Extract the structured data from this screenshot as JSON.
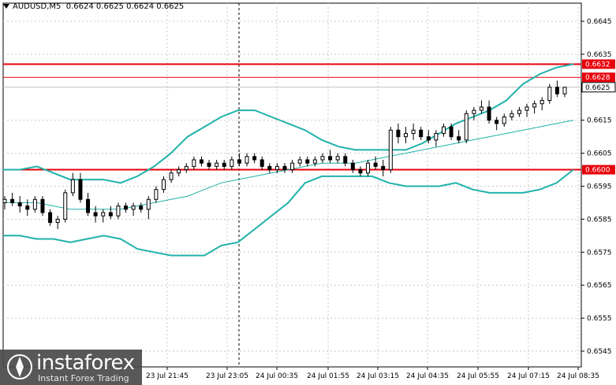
{
  "header": {
    "symbol": "AUDUSD,M5",
    "quote": "0.6624 0.6625 0.6624 0.6625"
  },
  "logo": {
    "brand": "instaforex",
    "tagline": "Instant Forex Trading"
  },
  "colors": {
    "candle": "#000000",
    "band": "#20b2aa",
    "level_line": "#e8000b",
    "level_bg": "#e8000b",
    "grid": "#c8c8c8",
    "vline": "#000000"
  },
  "chart_data": {
    "type": "candlestick",
    "symbol": "AUDUSD",
    "timeframe": "M5",
    "ylim": [
      0.654,
      0.665
    ],
    "y_ticks": [
      "0.6645",
      "0.6635",
      "0.6615",
      "0.6605",
      "0.6595",
      "0.6585",
      "0.6575",
      "0.6565",
      "0.6555",
      "0.6545"
    ],
    "x_ticks": [
      "23 Jul 21:45",
      "23 Jul 23:05",
      "24 Jul 00:35",
      "24 Jul 01:55",
      "24 Jul 03:15",
      "24 Jul 04:35",
      "24 Jul 05:55",
      "24 Jul 07:15",
      "24 Jul 08:35"
    ],
    "current_price": "0.6625",
    "levels": [
      {
        "label": "0.6632",
        "value": 0.6632
      },
      {
        "label": "0.6628",
        "value": 0.6628
      },
      {
        "label": "0.6600",
        "value": 0.66
      }
    ],
    "bollinger": {
      "upper": [
        0.66,
        0.66,
        0.6601,
        0.6599,
        0.6597,
        0.6597,
        0.6597,
        0.6596,
        0.6598,
        0.6601,
        0.6605,
        0.661,
        0.6613,
        0.6616,
        0.6618,
        0.6618,
        0.6616,
        0.6614,
        0.6612,
        0.6609,
        0.6607,
        0.6606,
        0.6606,
        0.6606,
        0.6606,
        0.6608,
        0.6611,
        0.6614,
        0.6616,
        0.6618,
        0.6621,
        0.6626,
        0.6629,
        0.6631,
        0.6632
      ],
      "middle": [
        0.659,
        0.659,
        0.659,
        0.6589,
        0.6588,
        0.6588,
        0.6588,
        0.6588,
        0.6589,
        0.659,
        0.6591,
        0.6592,
        0.6594,
        0.6596,
        0.6597,
        0.6598,
        0.6599,
        0.66,
        0.6601,
        0.6602,
        0.6602,
        0.6602,
        0.6603,
        0.6604,
        0.6605,
        0.6606,
        0.6607,
        0.6608,
        0.6609,
        0.661,
        0.6611,
        0.6612,
        0.6613,
        0.6614,
        0.6615
      ],
      "lower": [
        0.658,
        0.658,
        0.6579,
        0.6579,
        0.6578,
        0.6579,
        0.658,
        0.6579,
        0.6576,
        0.6575,
        0.6574,
        0.6574,
        0.6574,
        0.6577,
        0.6578,
        0.6582,
        0.6586,
        0.659,
        0.6596,
        0.6598,
        0.6598,
        0.6598,
        0.6598,
        0.6596,
        0.6595,
        0.6595,
        0.6595,
        0.6596,
        0.6594,
        0.6593,
        0.6593,
        0.6593,
        0.6594,
        0.6596,
        0.66
      ]
    },
    "candles": [
      [
        0.659,
        0.6592,
        0.6588,
        0.6591
      ],
      [
        0.6591,
        0.6593,
        0.6589,
        0.659
      ],
      [
        0.659,
        0.6592,
        0.6587,
        0.6589
      ],
      [
        0.6589,
        0.6591,
        0.6586,
        0.6588
      ],
      [
        0.6588,
        0.6592,
        0.6587,
        0.6591
      ],
      [
        0.6591,
        0.6592,
        0.6586,
        0.6587
      ],
      [
        0.6587,
        0.6588,
        0.6583,
        0.6584
      ],
      [
        0.6584,
        0.6586,
        0.6582,
        0.6585
      ],
      [
        0.6585,
        0.6594,
        0.6584,
        0.6593
      ],
      [
        0.6593,
        0.6599,
        0.6592,
        0.6597
      ],
      [
        0.6597,
        0.6599,
        0.659,
        0.6591
      ],
      [
        0.6591,
        0.6593,
        0.6586,
        0.6587
      ],
      [
        0.6587,
        0.6589,
        0.6584,
        0.6586
      ],
      [
        0.6586,
        0.6588,
        0.6584,
        0.6587
      ],
      [
        0.6587,
        0.6589,
        0.6585,
        0.6586
      ],
      [
        0.6586,
        0.659,
        0.6585,
        0.6589
      ],
      [
        0.6589,
        0.659,
        0.6587,
        0.6588
      ],
      [
        0.6588,
        0.659,
        0.6586,
        0.6589
      ],
      [
        0.6589,
        0.659,
        0.6587,
        0.6588
      ],
      [
        0.6588,
        0.6592,
        0.6585,
        0.6591
      ],
      [
        0.6591,
        0.6595,
        0.659,
        0.6594
      ],
      [
        0.6594,
        0.6598,
        0.6593,
        0.6597
      ],
      [
        0.6597,
        0.66,
        0.6596,
        0.6599
      ],
      [
        0.6599,
        0.6601,
        0.6598,
        0.66
      ],
      [
        0.66,
        0.6602,
        0.6599,
        0.6601
      ],
      [
        0.6601,
        0.6604,
        0.66,
        0.6603
      ],
      [
        0.6603,
        0.6604,
        0.6601,
        0.6602
      ],
      [
        0.6602,
        0.6603,
        0.66,
        0.6601
      ],
      [
        0.6601,
        0.6603,
        0.66,
        0.6602
      ],
      [
        0.6602,
        0.6603,
        0.66,
        0.6601
      ],
      [
        0.6601,
        0.6604,
        0.66,
        0.6603
      ],
      [
        0.6603,
        0.6605,
        0.6601,
        0.6602
      ],
      [
        0.6602,
        0.6605,
        0.6601,
        0.6604
      ],
      [
        0.6604,
        0.6605,
        0.6602,
        0.6603
      ],
      [
        0.6603,
        0.6604,
        0.66,
        0.6601
      ],
      [
        0.6601,
        0.6602,
        0.6599,
        0.66
      ],
      [
        0.66,
        0.6602,
        0.6599,
        0.6601
      ],
      [
        0.6601,
        0.6602,
        0.6599,
        0.66
      ],
      [
        0.66,
        0.6603,
        0.6599,
        0.6602
      ],
      [
        0.6602,
        0.6604,
        0.6601,
        0.6603
      ],
      [
        0.6603,
        0.6604,
        0.6601,
        0.6602
      ],
      [
        0.6602,
        0.6604,
        0.6601,
        0.6603
      ],
      [
        0.6603,
        0.6605,
        0.6602,
        0.6604
      ],
      [
        0.6604,
        0.6606,
        0.6602,
        0.6603
      ],
      [
        0.6603,
        0.6605,
        0.6602,
        0.6604
      ],
      [
        0.6604,
        0.6605,
        0.6601,
        0.6602
      ],
      [
        0.6602,
        0.6603,
        0.6599,
        0.66
      ],
      [
        0.66,
        0.6601,
        0.6598,
        0.6599
      ],
      [
        0.6599,
        0.6603,
        0.6598,
        0.6602
      ],
      [
        0.6602,
        0.6604,
        0.66,
        0.6601
      ],
      [
        0.6601,
        0.6603,
        0.6598,
        0.66
      ],
      [
        0.66,
        0.6613,
        0.6599,
        0.6612
      ],
      [
        0.6612,
        0.6614,
        0.6608,
        0.661
      ],
      [
        0.661,
        0.6613,
        0.6608,
        0.6611
      ],
      [
        0.6611,
        0.6614,
        0.6609,
        0.6612
      ],
      [
        0.6612,
        0.6613,
        0.6609,
        0.661
      ],
      [
        0.661,
        0.6612,
        0.6608,
        0.6609
      ],
      [
        0.6609,
        0.6612,
        0.6607,
        0.6611
      ],
      [
        0.6611,
        0.6614,
        0.661,
        0.6613
      ],
      [
        0.6613,
        0.6614,
        0.6609,
        0.661
      ],
      [
        0.661,
        0.6612,
        0.6608,
        0.6609
      ],
      [
        0.6609,
        0.6618,
        0.6608,
        0.6617
      ],
      [
        0.6617,
        0.6619,
        0.6615,
        0.6618
      ],
      [
        0.6618,
        0.6621,
        0.6617,
        0.6619
      ],
      [
        0.6619,
        0.6621,
        0.6614,
        0.6615
      ],
      [
        0.6615,
        0.6616,
        0.6612,
        0.6614
      ],
      [
        0.6614,
        0.6617,
        0.6613,
        0.6616
      ],
      [
        0.6616,
        0.6618,
        0.6615,
        0.6617
      ],
      [
        0.6617,
        0.6619,
        0.6616,
        0.6618
      ],
      [
        0.6618,
        0.662,
        0.6616,
        0.6619
      ],
      [
        0.6619,
        0.6621,
        0.6617,
        0.662
      ],
      [
        0.662,
        0.6622,
        0.6618,
        0.6621
      ],
      [
        0.6621,
        0.6626,
        0.662,
        0.6625
      ],
      [
        0.6625,
        0.6627,
        0.6622,
        0.6623
      ],
      [
        0.6623,
        0.6625,
        0.6622,
        0.6625
      ]
    ]
  }
}
